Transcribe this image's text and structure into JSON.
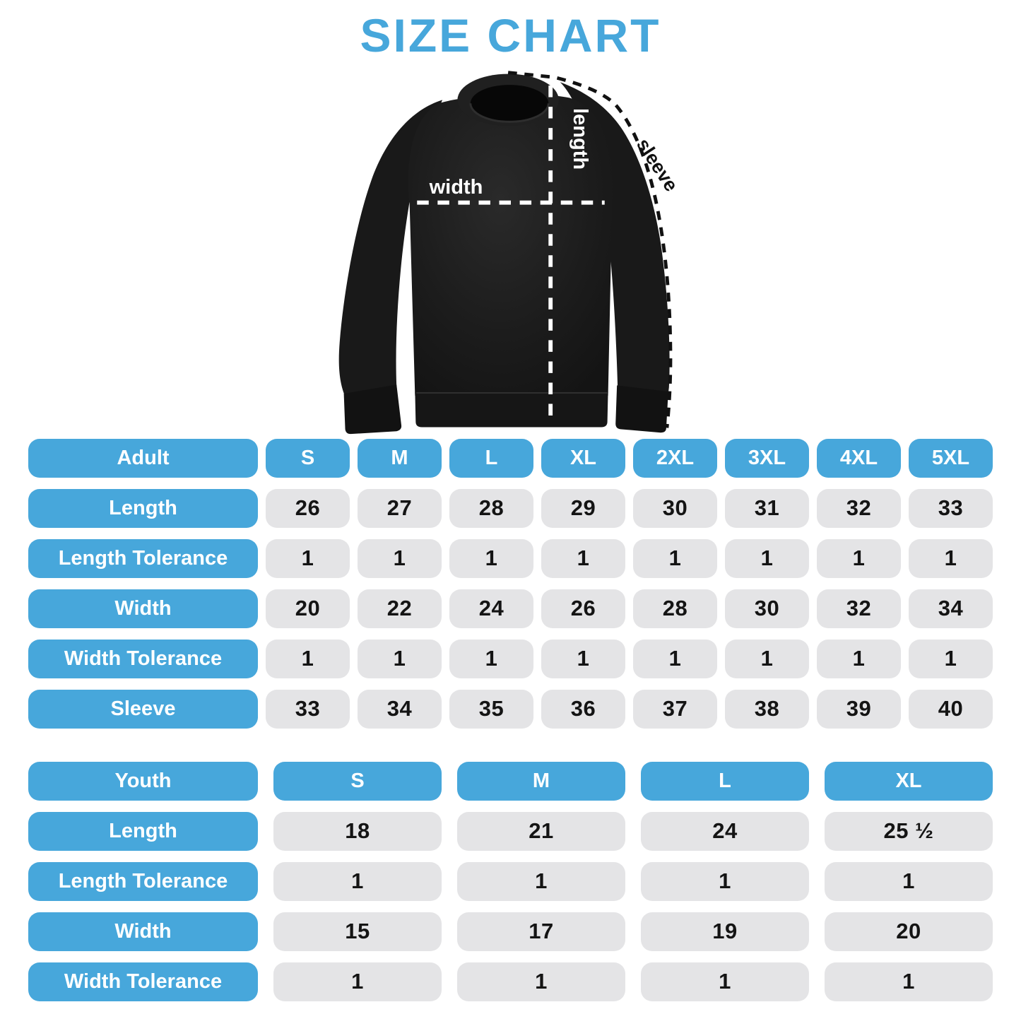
{
  "title": "SIZE CHART",
  "colors": {
    "accent_blue": "#47a7db",
    "cell_gray": "#e4e4e6",
    "value_text": "#141414",
    "garment_black": "#1b1b1b",
    "background": "#ffffff"
  },
  "diagram": {
    "garment": "black crewneck sweatshirt",
    "width_label": "width",
    "length_label": "length",
    "sleeve_label": "sleeve"
  },
  "adult_table": {
    "header": [
      "Adult",
      "S",
      "M",
      "L",
      "XL",
      "2XL",
      "3XL",
      "4XL",
      "5XL"
    ],
    "rows": [
      {
        "label": "Length",
        "values": [
          "26",
          "27",
          "28",
          "29",
          "30",
          "31",
          "32",
          "33"
        ]
      },
      {
        "label": "Length Tolerance",
        "values": [
          "1",
          "1",
          "1",
          "1",
          "1",
          "1",
          "1",
          "1"
        ]
      },
      {
        "label": "Width",
        "values": [
          "20",
          "22",
          "24",
          "26",
          "28",
          "30",
          "32",
          "34"
        ]
      },
      {
        "label": "Width Tolerance",
        "values": [
          "1",
          "1",
          "1",
          "1",
          "1",
          "1",
          "1",
          "1"
        ]
      },
      {
        "label": "Sleeve",
        "values": [
          "33",
          "34",
          "35",
          "36",
          "37",
          "38",
          "39",
          "40"
        ]
      }
    ]
  },
  "youth_table": {
    "header": [
      "Youth",
      "S",
      "M",
      "L",
      "XL"
    ],
    "rows": [
      {
        "label": "Length",
        "values": [
          "18",
          "21",
          "24",
          "25 ½"
        ]
      },
      {
        "label": "Length Tolerance",
        "values": [
          "1",
          "1",
          "1",
          "1"
        ]
      },
      {
        "label": "Width",
        "values": [
          "15",
          "17",
          "19",
          "20"
        ]
      },
      {
        "label": "Width Tolerance",
        "values": [
          "1",
          "1",
          "1",
          "1"
        ]
      }
    ]
  },
  "chart_data": [
    {
      "type": "table",
      "title": "Adult",
      "columns": [
        "Adult",
        "S",
        "M",
        "L",
        "XL",
        "2XL",
        "3XL",
        "4XL",
        "5XL"
      ],
      "rows": [
        [
          "Length",
          26,
          27,
          28,
          29,
          30,
          31,
          32,
          33
        ],
        [
          "Length Tolerance",
          1,
          1,
          1,
          1,
          1,
          1,
          1,
          1
        ],
        [
          "Width",
          20,
          22,
          24,
          26,
          28,
          30,
          32,
          34
        ],
        [
          "Width Tolerance",
          1,
          1,
          1,
          1,
          1,
          1,
          1,
          1
        ],
        [
          "Sleeve",
          33,
          34,
          35,
          36,
          37,
          38,
          39,
          40
        ]
      ]
    },
    {
      "type": "table",
      "title": "Youth",
      "columns": [
        "Youth",
        "S",
        "M",
        "L",
        "XL"
      ],
      "rows": [
        [
          "Length",
          18,
          21,
          24,
          25.5
        ],
        [
          "Length Tolerance",
          1,
          1,
          1,
          1
        ],
        [
          "Width",
          15,
          17,
          19,
          20
        ],
        [
          "Width Tolerance",
          1,
          1,
          1,
          1
        ]
      ]
    }
  ]
}
